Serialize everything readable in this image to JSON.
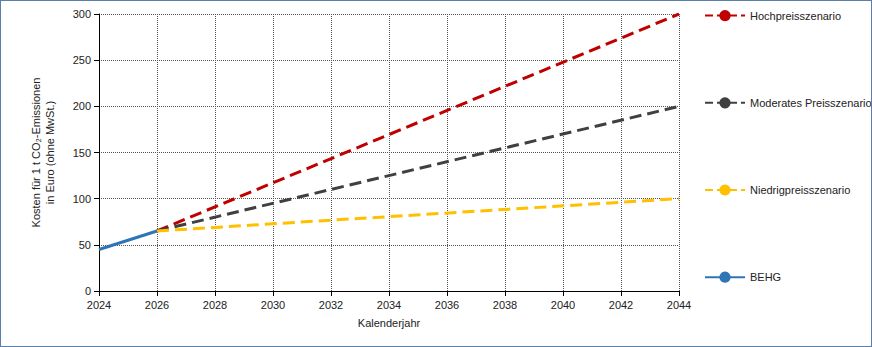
{
  "chart_data": {
    "type": "line",
    "x_label": "Kalenderjahr",
    "y_label": "Kosten für 1 t CO₂-Emissionen\nin Euro (ohne MwSt.)",
    "xlim": [
      2024,
      2044
    ],
    "xticks": [
      2024,
      2026,
      2028,
      2030,
      2032,
      2034,
      2036,
      2038,
      2040,
      2042,
      2044
    ],
    "ylim": [
      0,
      300
    ],
    "yticks": [
      0,
      50,
      100,
      150,
      200,
      250,
      300
    ],
    "grid": true,
    "legend": "right",
    "series": [
      {
        "name": "Hochpreisszenario",
        "color": "#c00000",
        "line_style": "dashed",
        "x": [
          2026,
          2044
        ],
        "values": [
          65,
          300
        ]
      },
      {
        "name": "Moderates Preisszenario",
        "color": "#404040",
        "line_style": "dashed",
        "x": [
          2026,
          2044
        ],
        "values": [
          65,
          200
        ]
      },
      {
        "name": "Niedrigpreisszenario",
        "color": "#ffc000",
        "line_style": "dashed",
        "x": [
          2026,
          2044
        ],
        "values": [
          65,
          100
        ]
      },
      {
        "name": "BEHG",
        "color": "#2e75b6",
        "line_style": "solid",
        "x": [
          2024,
          2026
        ],
        "values": [
          45,
          65
        ]
      }
    ]
  }
}
